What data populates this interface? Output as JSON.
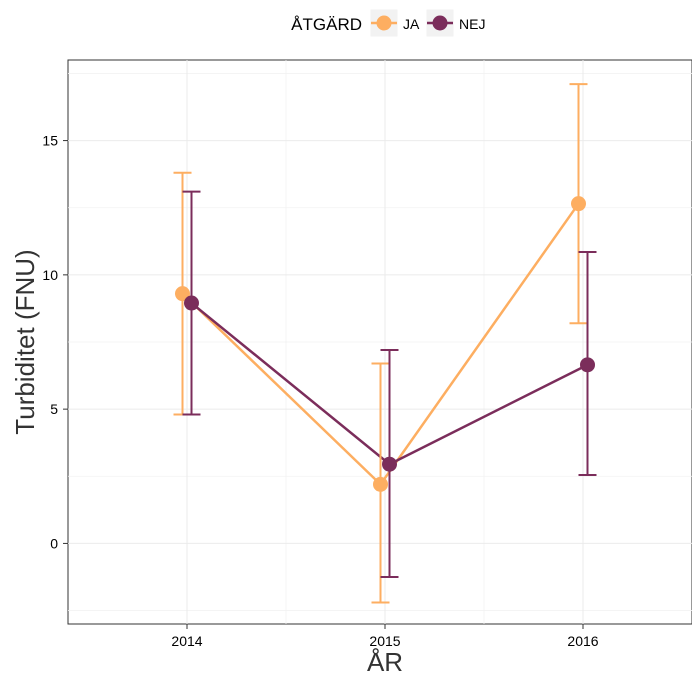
{
  "chart_data": {
    "type": "line",
    "categories": [
      "2014",
      "2015",
      "2016"
    ],
    "xlabel": "ÅR",
    "ylabel": "Turbiditet (FNU)",
    "ylim": [
      -3.0,
      18.0
    ],
    "yticks": [
      0,
      5,
      10,
      15
    ],
    "grid": true,
    "legend": {
      "title": "ÅTGÄRD",
      "placement": "top"
    },
    "series": [
      {
        "name": "JA",
        "color": "#fdae61",
        "values": [
          9.3,
          2.2,
          12.65
        ],
        "error_low": [
          4.8,
          -2.2,
          8.2
        ],
        "error_high": [
          13.8,
          6.7,
          17.1
        ]
      },
      {
        "name": "NEJ",
        "color": "#7b2d5b",
        "values": [
          8.95,
          2.95,
          6.65
        ],
        "error_low": [
          4.8,
          -1.25,
          2.55
        ],
        "error_high": [
          13.1,
          7.2,
          10.85
        ]
      }
    ]
  }
}
